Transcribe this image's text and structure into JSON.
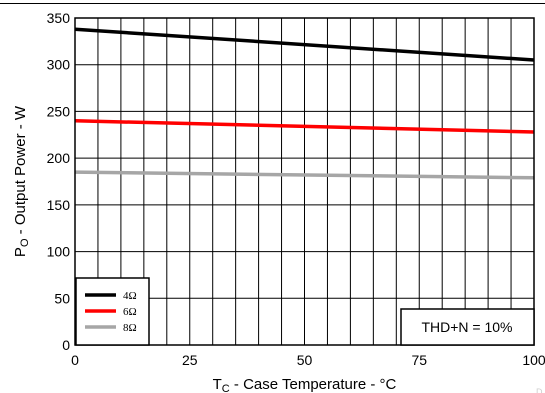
{
  "chart_data": {
    "type": "line",
    "title": "",
    "xlabel": {
      "main": "T",
      "sub": "C",
      "rest": " - Case Temperature - °C"
    },
    "ylabel": {
      "main": "P",
      "sub": "O",
      "rest": " - Output Power - W"
    },
    "xlim": [
      0,
      100
    ],
    "ylim": [
      0,
      350
    ],
    "xticks": [
      0,
      25,
      50,
      75,
      100
    ],
    "xtick_labels": [
      "0",
      "25",
      "50",
      "75",
      "100"
    ],
    "yticks": [
      0,
      50,
      100,
      150,
      200,
      250,
      300,
      350
    ],
    "ytick_labels": [
      "0",
      "50",
      "100",
      "150",
      "200",
      "250",
      "300",
      "350"
    ],
    "grid": true,
    "legend_position": "bottom-left",
    "series": [
      {
        "name": "4Ω",
        "color": "#000000",
        "x": [
          0,
          100
        ],
        "y": [
          338,
          305
        ]
      },
      {
        "name": "6Ω",
        "color": "#ff0000",
        "x": [
          0,
          100
        ],
        "y": [
          240,
          228
        ]
      },
      {
        "name": "8Ω",
        "color": "#a6a6a6",
        "x": [
          0,
          100
        ],
        "y": [
          185,
          179
        ]
      }
    ],
    "annotation": "THD+N = 10%"
  },
  "watermark": "D"
}
